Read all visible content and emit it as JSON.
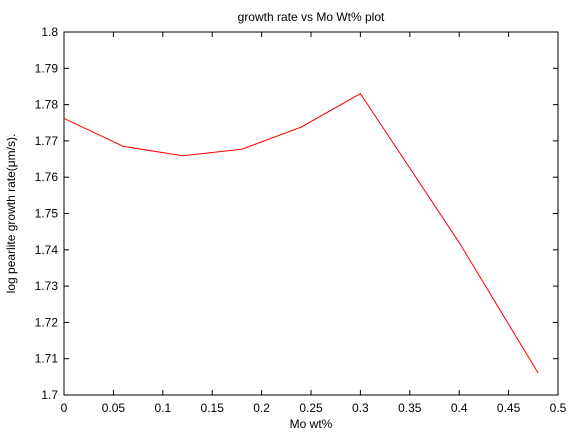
{
  "chart_data": {
    "type": "line",
    "title": "growth rate vs Mo Wt% plot",
    "xlabel": "Mo wt%",
    "ylabel": "log pearlite growth rate(μm/s).",
    "xlim": [
      0,
      0.5
    ],
    "ylim": [
      1.7,
      1.8
    ],
    "xticks": [
      "0",
      "0.05",
      "0.1",
      "0.15",
      "0.2",
      "0.25",
      "0.3",
      "0.35",
      "0.4",
      "0.45",
      "0.5"
    ],
    "yticks": [
      "1.7",
      "1.71",
      "1.72",
      "1.73",
      "1.74",
      "1.75",
      "1.76",
      "1.77",
      "1.78",
      "1.79",
      "1.8"
    ],
    "grid": false,
    "series": [
      {
        "color": "#ff0000",
        "x": [
          0,
          0.06,
          0.12,
          0.18,
          0.24,
          0.3,
          0.4,
          0.48
        ],
        "y": [
          1.7762,
          1.7685,
          1.7659,
          1.7677,
          1.7738,
          1.783,
          1.742,
          1.706
        ]
      }
    ]
  }
}
